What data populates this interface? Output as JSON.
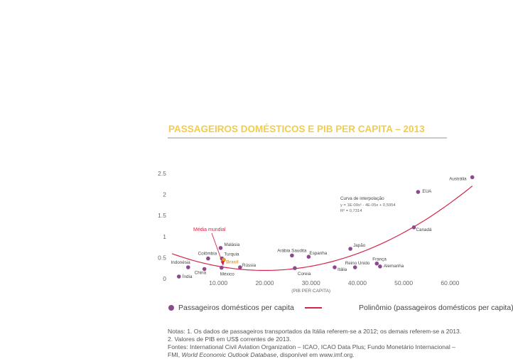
{
  "chart_data": {
    "type": "scatter",
    "title": "PASSAGEIROS DOMÉSTICOS E PIB PER CAPITA – 2013",
    "xlabel": "(PIB PER CAPITA)",
    "ylabel": "",
    "xlim": [
      0,
      65000
    ],
    "ylim": [
      0,
      2.5
    ],
    "xticks": [
      10000,
      20000,
      30000,
      40000,
      50000,
      60000
    ],
    "xtick_labels": [
      "10.000",
      "20.000",
      "30.000",
      "40.000",
      "50.000",
      "60.000"
    ],
    "yticks": [
      0,
      0.5,
      1,
      1.5,
      2,
      2.5
    ],
    "ytick_labels": [
      "0",
      "0.5",
      "1",
      "1.5",
      "2",
      "2.5"
    ],
    "series": [
      {
        "name": "Passageiros domésticos per capita",
        "color": "#8b4a8c",
        "points": [
          {
            "label": "Índia",
            "x": 1500,
            "y": 0.05
          },
          {
            "label": "Indonésia",
            "x": 3500,
            "y": 0.27
          },
          {
            "label": "China",
            "x": 7000,
            "y": 0.23
          },
          {
            "label": "Colômbia",
            "x": 7800,
            "y": 0.48
          },
          {
            "label": "Malásia",
            "x": 10500,
            "y": 0.73
          },
          {
            "label": "Turquia",
            "x": 10800,
            "y": 0.48
          },
          {
            "label": "Brasil",
            "x": 11200,
            "y": 0.45
          },
          {
            "label": "México",
            "x": 10700,
            "y": 0.26
          },
          {
            "label": "Rússia",
            "x": 14700,
            "y": 0.27
          },
          {
            "label": "Arábia Saudita",
            "x": 25900,
            "y": 0.55
          },
          {
            "label": "Espanha",
            "x": 29500,
            "y": 0.52
          },
          {
            "label": "Coreia",
            "x": 26500,
            "y": 0.25
          },
          {
            "label": "Itália",
            "x": 35100,
            "y": 0.27
          },
          {
            "label": "Japão",
            "x": 38500,
            "y": 0.71
          },
          {
            "label": "Reino Unido",
            "x": 39500,
            "y": 0.27
          },
          {
            "label": "França",
            "x": 44200,
            "y": 0.36
          },
          {
            "label": "Alemanha",
            "x": 44900,
            "y": 0.29
          },
          {
            "label": "Canadá",
            "x": 52200,
            "y": 1.22
          },
          {
            "label": "EUA",
            "x": 53100,
            "y": 2.06
          },
          {
            "label": "Austrália",
            "x": 64800,
            "y": 2.41
          }
        ]
      },
      {
        "name": "Polinômio (passageiros domésticos per capita)",
        "color": "#d4254a",
        "type": "polynomial",
        "coefficients": {
          "a": 1e-09,
          "b": -4e-05,
          "c": 0.5954
        }
      }
    ],
    "annotations": {
      "interp_title": "Curva de interpolação",
      "interp_eq": "y = 1E-09x² - 4E-05x + 0,5954",
      "interp_r2": "R² = 0,7314",
      "media_label": "Média mundial",
      "highlight_point": "Brasil",
      "highlight_color": "#e0a030",
      "media_color": "#d4254a"
    },
    "legend": {
      "placement": "bottom",
      "marker_label": "Passageiros domésticos per capita",
      "line_label": "Polinômio (passageiros domésticos per capita)"
    }
  },
  "notes": [
    "Notas: 1. Os dados de passageiros transportados da Itália referem-se a 2012; os demais referem-se a 2013.",
    "2. Valores de PIB em US$ correntes de 2013.",
    "Fontes: International Civil Aviation Organization – ICAO, ICAO Data Plus; Fundo Monetário Internacional –",
    "FMI, World Economic Outlook Database, disponível em www.imf.org."
  ]
}
